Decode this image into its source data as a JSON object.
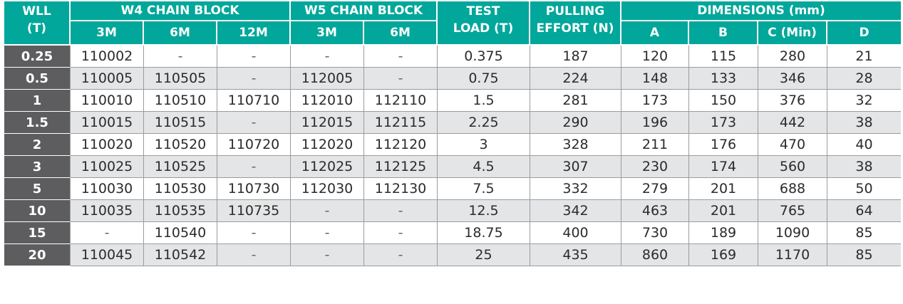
{
  "header": {
    "wll": "WLL",
    "wll_unit": "(T)",
    "w4": "W4 CHAIN BLOCK",
    "w5": "W5 CHAIN BLOCK",
    "test_load_1": "TEST",
    "test_load_2": "LOAD (T)",
    "pulling_1": "PULLING",
    "pulling_2": "EFFORT (N)",
    "dimensions": "DIMENSIONS (mm)",
    "w4_cols": [
      "3M",
      "6M",
      "12M"
    ],
    "w5_cols": [
      "3M",
      "6M"
    ],
    "dim_cols": [
      "A",
      "B",
      "C (Min)",
      "D"
    ]
  },
  "rows": [
    {
      "wll": "0.25",
      "cells": [
        "110002",
        "-",
        "-",
        "-",
        "-",
        "0.375",
        "187",
        "120",
        "115",
        "280",
        "21"
      ]
    },
    {
      "wll": "0.5",
      "cells": [
        "110005",
        "110505",
        "-",
        "112005",
        "-",
        "0.75",
        "224",
        "148",
        "133",
        "346",
        "28"
      ]
    },
    {
      "wll": "1",
      "cells": [
        "110010",
        "110510",
        "110710",
        "112010",
        "112110",
        "1.5",
        "281",
        "173",
        "150",
        "376",
        "32"
      ]
    },
    {
      "wll": "1.5",
      "cells": [
        "110015",
        "110515",
        "-",
        "112015",
        "112115",
        "2.25",
        "290",
        "196",
        "173",
        "442",
        "38"
      ]
    },
    {
      "wll": "2",
      "cells": [
        "110020",
        "110520",
        "110720",
        "112020",
        "112120",
        "3",
        "328",
        "211",
        "176",
        "470",
        "40"
      ]
    },
    {
      "wll": "3",
      "cells": [
        "110025",
        "110525",
        "-",
        "112025",
        "112125",
        "4.5",
        "307",
        "230",
        "174",
        "560",
        "38"
      ]
    },
    {
      "wll": "5",
      "cells": [
        "110030",
        "110530",
        "110730",
        "112030",
        "112130",
        "7.5",
        "332",
        "279",
        "201",
        "688",
        "50"
      ]
    },
    {
      "wll": "10",
      "cells": [
        "110035",
        "110535",
        "110735",
        "-",
        "-",
        "12.5",
        "342",
        "463",
        "201",
        "765",
        "64"
      ]
    },
    {
      "wll": "15",
      "cells": [
        "-",
        "110540",
        "-",
        "-",
        "-",
        "18.75",
        "400",
        "730",
        "189",
        "1090",
        "85"
      ]
    },
    {
      "wll": "20",
      "cells": [
        "110045",
        "110542",
        "-",
        "-",
        "-",
        "25",
        "435",
        "860",
        "169",
        "1170",
        "85"
      ]
    }
  ],
  "colors": {
    "header": "#00a79a",
    "wll_column": "#5d5d5f",
    "stripe": "#e4e5e7"
  }
}
